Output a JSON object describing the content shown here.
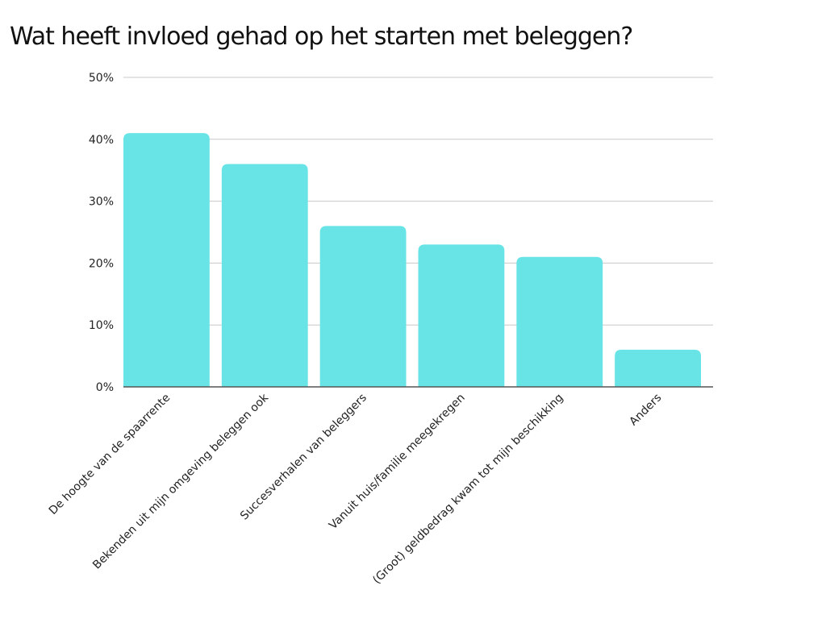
{
  "chart_data": {
    "type": "bar",
    "title": "Wat heeft invloed gehad op het starten met beleggen?",
    "xlabel": "",
    "ylabel": "",
    "categories": [
      "De hoogte van de spaarrente",
      "Bekenden uit mijn omgeving beleggen ook",
      "Succesverhalen van beleggers",
      "Vanuit huis/familie meegekregen",
      "(Groot) geldbedrag kwam tot mijn beschikking",
      "Anders"
    ],
    "values": [
      41,
      36,
      26,
      23,
      21,
      6
    ],
    "ylim": [
      0,
      50
    ],
    "yticks": [
      0,
      10,
      20,
      30,
      40,
      50
    ],
    "ytick_labels": [
      "0%",
      "10%",
      "20%",
      "30%",
      "40%",
      "50%"
    ],
    "grid": true,
    "legend": "none",
    "bar_color": "#68E4E6",
    "grid_color": "#C8C8C8",
    "axis_color": "#555555"
  }
}
